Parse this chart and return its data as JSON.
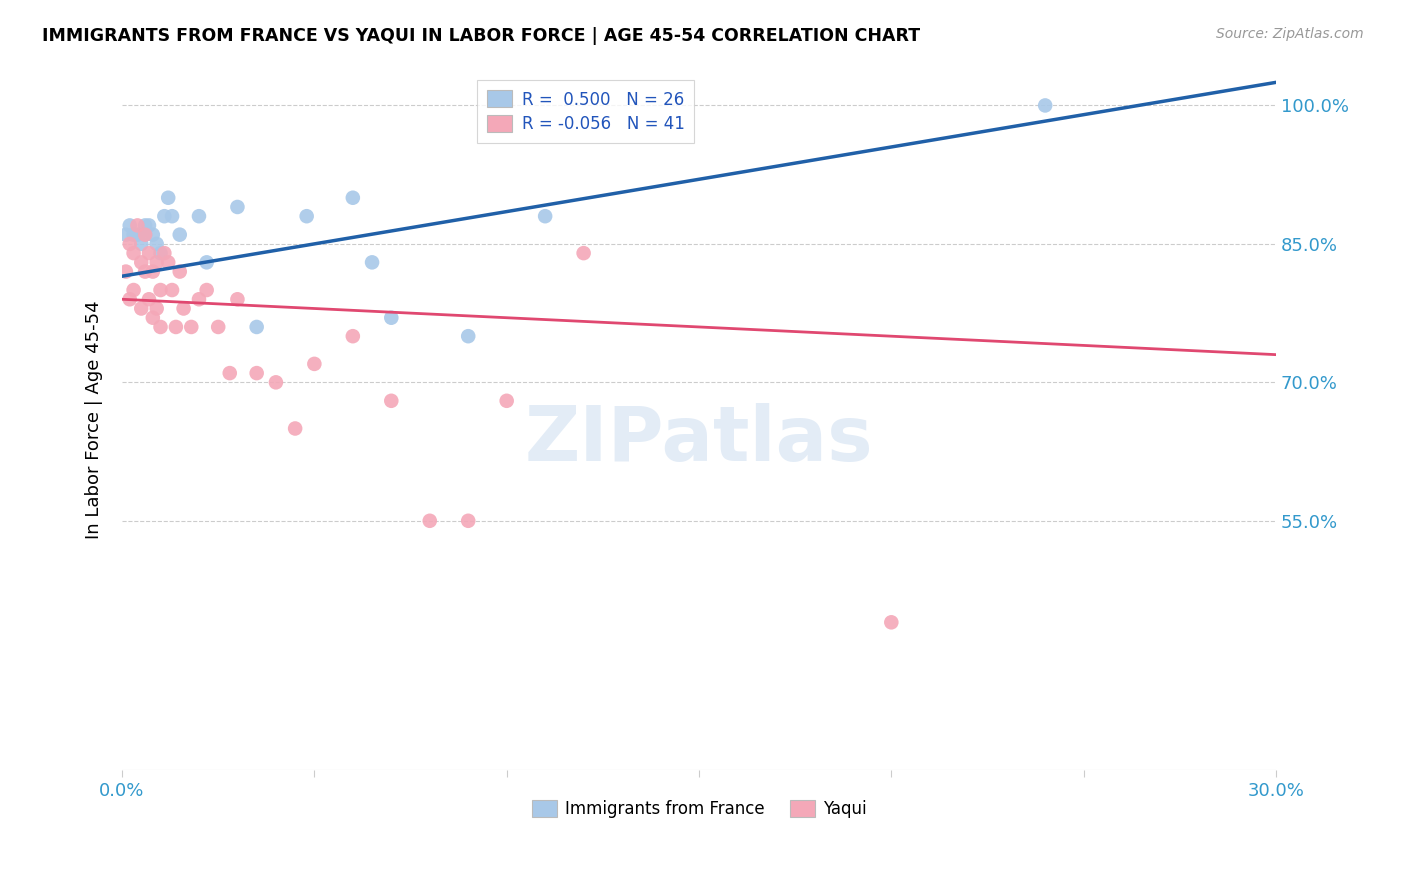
{
  "title": "IMMIGRANTS FROM FRANCE VS YAQUI IN LABOR FORCE | AGE 45-54 CORRELATION CHART",
  "source": "Source: ZipAtlas.com",
  "ylabel": "In Labor Force | Age 45-54",
  "ytick_vals": [
    1.0,
    0.85,
    0.7,
    0.55
  ],
  "ytick_labels": [
    "100.0%",
    "85.0%",
    "70.0%",
    "55.0%"
  ],
  "xlim": [
    0.0,
    0.3
  ],
  "ylim": [
    0.28,
    1.04
  ],
  "legend_r_france": " 0.500",
  "legend_n_france": "26",
  "legend_r_yaqui": "-0.056",
  "legend_n_yaqui": "41",
  "color_france": "#a8c8e8",
  "color_yaqui": "#f4a8b8",
  "line_color_france": "#2060a8",
  "line_color_yaqui": "#e04870",
  "watermark": "ZIPatlas",
  "france_x": [
    0.001,
    0.002,
    0.003,
    0.004,
    0.005,
    0.006,
    0.006,
    0.007,
    0.008,
    0.009,
    0.01,
    0.011,
    0.012,
    0.013,
    0.015,
    0.02,
    0.022,
    0.03,
    0.035,
    0.048,
    0.06,
    0.065,
    0.07,
    0.09,
    0.11,
    0.24
  ],
  "france_y": [
    0.86,
    0.87,
    0.86,
    0.86,
    0.85,
    0.87,
    0.86,
    0.87,
    0.86,
    0.85,
    0.84,
    0.88,
    0.9,
    0.88,
    0.86,
    0.88,
    0.83,
    0.89,
    0.76,
    0.88,
    0.9,
    0.83,
    0.77,
    0.75,
    0.88,
    1.0
  ],
  "yaqui_x": [
    0.001,
    0.002,
    0.002,
    0.003,
    0.003,
    0.004,
    0.005,
    0.005,
    0.006,
    0.006,
    0.007,
    0.007,
    0.008,
    0.008,
    0.009,
    0.009,
    0.01,
    0.01,
    0.011,
    0.012,
    0.013,
    0.014,
    0.015,
    0.016,
    0.018,
    0.02,
    0.022,
    0.025,
    0.028,
    0.03,
    0.035,
    0.04,
    0.045,
    0.05,
    0.06,
    0.07,
    0.08,
    0.09,
    0.1,
    0.12,
    0.2
  ],
  "yaqui_y": [
    0.82,
    0.85,
    0.79,
    0.84,
    0.8,
    0.87,
    0.83,
    0.78,
    0.86,
    0.82,
    0.84,
    0.79,
    0.82,
    0.77,
    0.83,
    0.78,
    0.8,
    0.76,
    0.84,
    0.83,
    0.8,
    0.76,
    0.82,
    0.78,
    0.76,
    0.79,
    0.8,
    0.76,
    0.71,
    0.79,
    0.71,
    0.7,
    0.65,
    0.72,
    0.75,
    0.68,
    0.55,
    0.55,
    0.68,
    0.84,
    0.44
  ]
}
